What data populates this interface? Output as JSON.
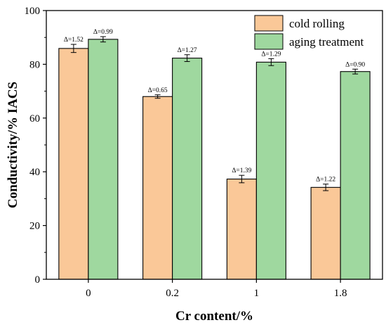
{
  "chart_data": {
    "type": "bar",
    "xlabel": "Cr content/%",
    "ylabel": "Conductivity/% IACS",
    "ylim": [
      0,
      100
    ],
    "yticks": [
      0,
      20,
      40,
      60,
      80,
      100
    ],
    "categories": [
      "0",
      "0.2",
      "1",
      "1.8"
    ],
    "legend_position": "top-right",
    "grid": false,
    "series": [
      {
        "name": "cold rolling",
        "color": "#fac898",
        "values": [
          85.9,
          68.0,
          37.3,
          34.2
        ],
        "errors": [
          1.52,
          0.65,
          1.39,
          1.22
        ],
        "labels": [
          "Δ=1.52",
          "Δ=0.65",
          "Δ=1.39",
          "Δ=1.22"
        ]
      },
      {
        "name": "aging treatment",
        "color": "#9fd89f",
        "values": [
          89.3,
          82.3,
          80.8,
          77.3
        ],
        "errors": [
          0.99,
          1.27,
          1.29,
          0.9
        ],
        "labels": [
          "Δ=0.99",
          "Δ=1.27",
          "Δ=1.29",
          "Δ=0.90"
        ]
      }
    ]
  }
}
